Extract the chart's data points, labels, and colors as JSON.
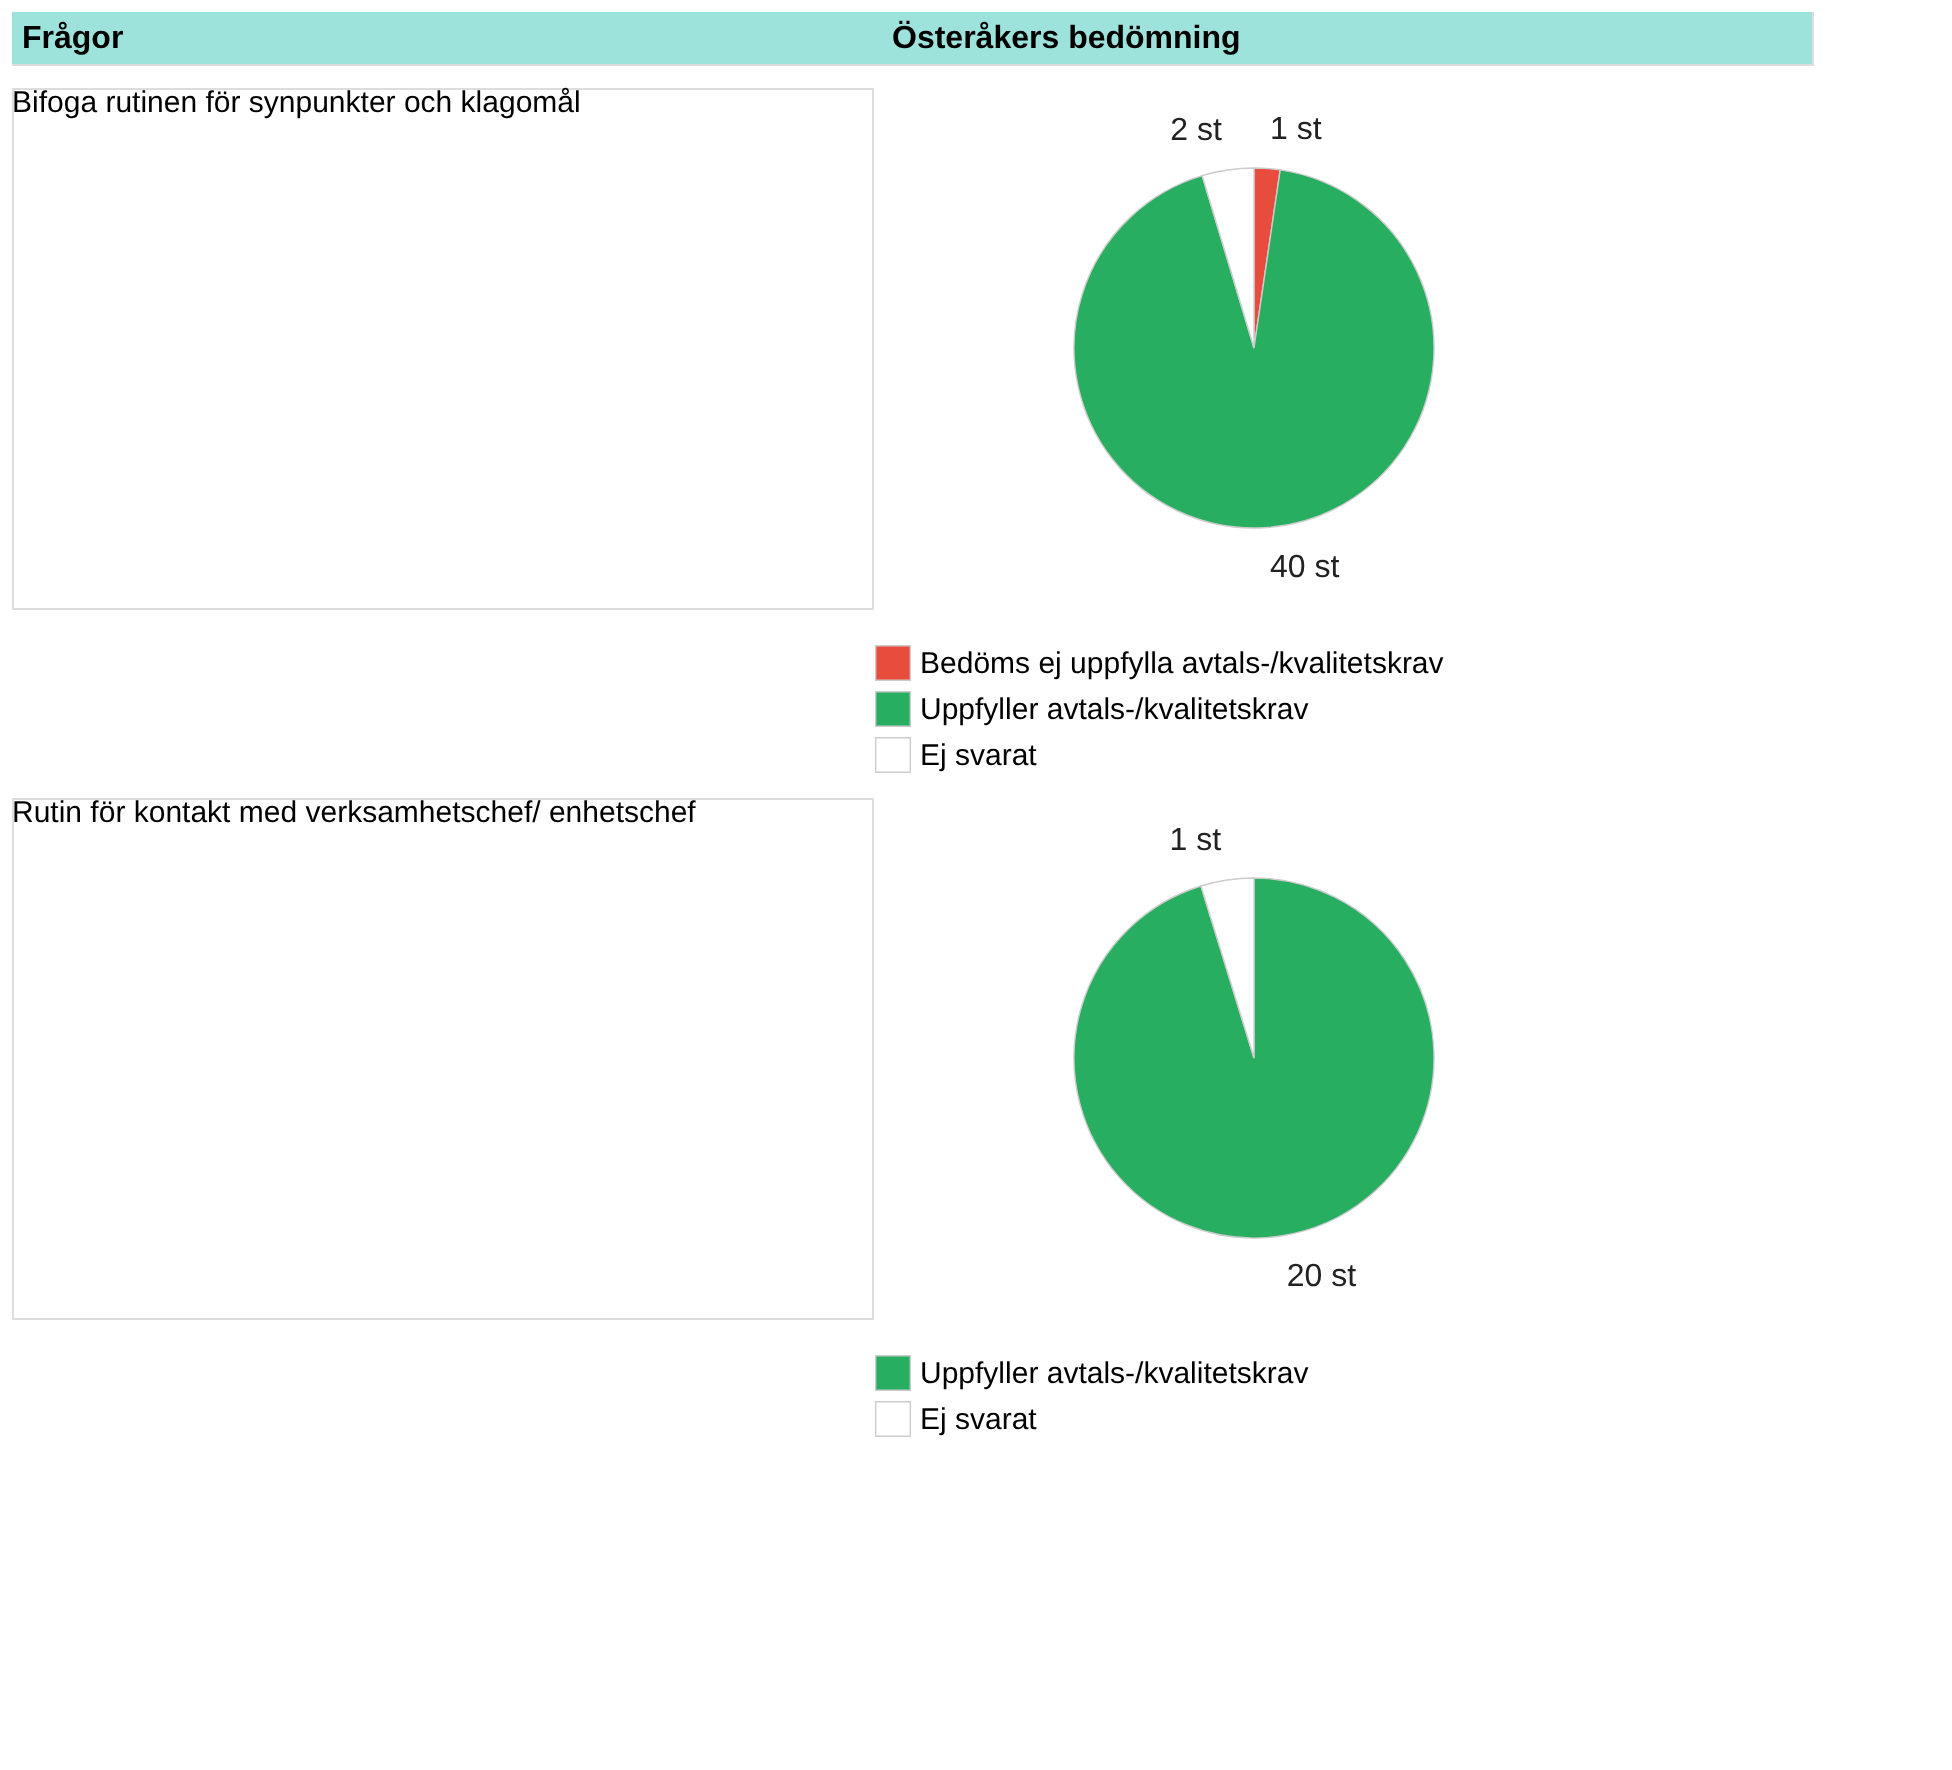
{
  "chart_data": [
    {
      "type": "pie",
      "title": "Bifoga rutinen för synpunkter och klagomål",
      "annotations": [
        "Frågor",
        "Österåkers bedömning"
      ],
      "categories": [
        "Bedöms ej uppfylla avtals-/kvalitetskrav",
        "Uppfyller avtals-/kvalitetskrav",
        "Ej svarat"
      ],
      "values": [
        1,
        40,
        2
      ],
      "colors": [
        "#e74c3c",
        "#27ae60",
        "#ffffff"
      ],
      "value_labels": [
        "1 st",
        "40 st",
        "2 st"
      ],
      "legend": "bottom"
    },
    {
      "type": "pie",
      "title": "Rutin för kontakt med verksamhetschef/ enhetschef",
      "categories": [
        "Uppfyller avtals-/kvalitetskrav",
        "Ej svarat"
      ],
      "values": [
        20,
        1
      ],
      "colors": [
        "#27ae60",
        "#ffffff"
      ],
      "value_labels": [
        "20 st",
        "1 st"
      ],
      "legend": "bottom"
    }
  ]
}
